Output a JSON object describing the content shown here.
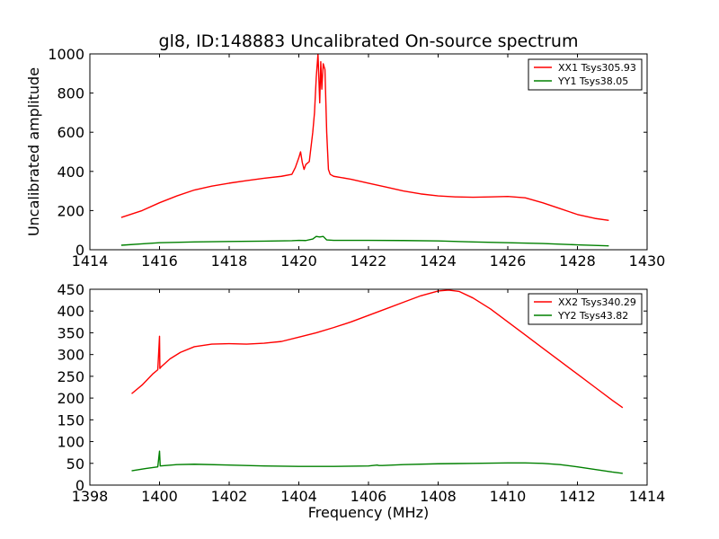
{
  "chart_data": [
    {
      "type": "line",
      "title": "gl8, ID:148883 Uncalibrated On-source spectrum",
      "xlabel": "",
      "ylabel": "Uncalibrated amplitude",
      "xlim": [
        1414,
        1430
      ],
      "ylim": [
        0,
        1000
      ],
      "xticks": [
        1414,
        1416,
        1418,
        1420,
        1422,
        1424,
        1426,
        1428,
        1430
      ],
      "yticks": [
        0,
        200,
        400,
        600,
        800,
        1000
      ],
      "legend_position": "top-right",
      "series": [
        {
          "name": "XX1 Tsys305.93",
          "color": "#ff0000",
          "x": [
            1414.9,
            1415.5,
            1416,
            1416.5,
            1417,
            1417.5,
            1418,
            1418.5,
            1419,
            1419.5,
            1419.8,
            1419.9,
            1420.0,
            1420.05,
            1420.1,
            1420.15,
            1420.2,
            1420.3,
            1420.4,
            1420.45,
            1420.5,
            1420.55,
            1420.6,
            1420.63,
            1420.66,
            1420.7,
            1420.75,
            1420.8,
            1420.85,
            1420.9,
            1421.0,
            1421.5,
            1422,
            1422.5,
            1423,
            1423.5,
            1424,
            1424.5,
            1425,
            1425.5,
            1426,
            1426.5,
            1427,
            1427.5,
            1428,
            1428.5,
            1428.9
          ],
          "y": [
            165,
            200,
            240,
            275,
            305,
            325,
            340,
            353,
            365,
            375,
            385,
            420,
            470,
            500,
            445,
            410,
            435,
            450,
            600,
            700,
            880,
            1000,
            750,
            960,
            820,
            950,
            920,
            600,
            410,
            385,
            375,
            360,
            340,
            320,
            300,
            285,
            275,
            270,
            268,
            270,
            272,
            265,
            240,
            210,
            180,
            160,
            150
          ]
        },
        {
          "name": "YY1 Tsys38.05",
          "color": "#008000",
          "x": [
            1414.9,
            1415.5,
            1416,
            1417,
            1418,
            1419,
            1419.8,
            1420.0,
            1420.2,
            1420.4,
            1420.5,
            1420.6,
            1420.7,
            1420.8,
            1421,
            1422,
            1423,
            1424,
            1425,
            1426,
            1427,
            1428,
            1428.9
          ],
          "y": [
            23,
            30,
            36,
            40,
            42,
            44,
            46,
            48,
            47,
            55,
            68,
            65,
            68,
            50,
            48,
            48,
            47,
            45,
            40,
            36,
            32,
            25,
            20
          ]
        }
      ]
    },
    {
      "type": "line",
      "title": "",
      "xlabel": "Frequency (MHz)",
      "ylabel": "",
      "xlim": [
        1398,
        1414
      ],
      "ylim": [
        0,
        450
      ],
      "xticks": [
        1398,
        1400,
        1402,
        1404,
        1406,
        1408,
        1410,
        1412,
        1414
      ],
      "yticks": [
        0,
        50,
        100,
        150,
        200,
        250,
        300,
        350,
        400,
        450
      ],
      "legend_position": "top-right",
      "series": [
        {
          "name": "XX2 Tsys340.29",
          "color": "#ff0000",
          "x": [
            1399.2,
            1399.5,
            1399.8,
            1399.95,
            1400.0,
            1400.01,
            1400.05,
            1400.3,
            1400.6,
            1401,
            1401.5,
            1402,
            1402.5,
            1403,
            1403.5,
            1404,
            1404.5,
            1405,
            1405.5,
            1406,
            1406.5,
            1407,
            1407.5,
            1408,
            1408.3,
            1408.6,
            1409,
            1409.5,
            1410,
            1410.5,
            1411,
            1411.5,
            1412,
            1412.5,
            1413,
            1413.3
          ],
          "y": [
            210,
            230,
            255,
            265,
            342,
            268,
            272,
            290,
            305,
            318,
            324,
            325,
            324,
            326,
            330,
            340,
            350,
            362,
            375,
            390,
            405,
            420,
            435,
            446,
            448,
            445,
            430,
            405,
            375,
            345,
            315,
            285,
            255,
            225,
            195,
            178
          ]
        },
        {
          "name": "YY2 Tsys43.82",
          "color": "#008000",
          "x": [
            1399.2,
            1399.6,
            1399.95,
            1400.0,
            1400.02,
            1400.5,
            1401,
            1402,
            1403,
            1404,
            1405,
            1406,
            1406.25,
            1406.3,
            1406.4,
            1407,
            1408,
            1409,
            1410,
            1410.5,
            1411,
            1411.5,
            1412,
            1412.5,
            1413,
            1413.3
          ],
          "y": [
            33,
            38,
            42,
            78,
            44,
            47,
            48,
            46,
            44,
            43,
            43,
            44,
            46,
            45,
            45,
            47,
            49,
            50,
            51,
            51,
            50,
            47,
            42,
            36,
            30,
            27
          ]
        }
      ]
    }
  ]
}
